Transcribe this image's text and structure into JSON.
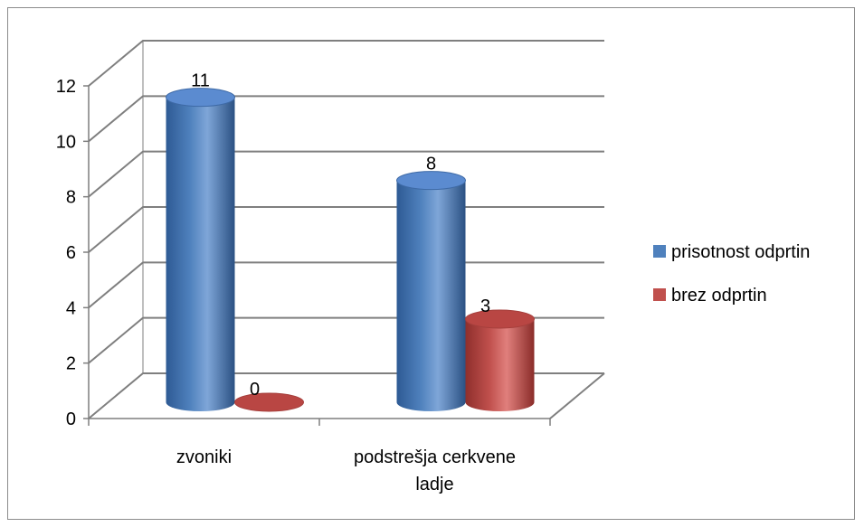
{
  "chart_data": {
    "type": "bar",
    "style": "3d-cylinder",
    "categories": [
      "zvoniki",
      "podstrešja cerkvene ladje"
    ],
    "category_lines": [
      [
        "zvoniki"
      ],
      [
        "podstrešja cerkvene",
        "ladje"
      ]
    ],
    "series": [
      {
        "name": "prisotnost odprtin",
        "values": [
          11,
          8
        ],
        "color": "#4f81bd"
      },
      {
        "name": "brez odprtin",
        "values": [
          0,
          3
        ],
        "color": "#c0504d"
      }
    ],
    "y_ticks": [
      0,
      2,
      4,
      6,
      8,
      10,
      12
    ],
    "ylim": [
      0,
      12
    ],
    "grid": true,
    "data_labels": true,
    "legend_position": "right"
  }
}
